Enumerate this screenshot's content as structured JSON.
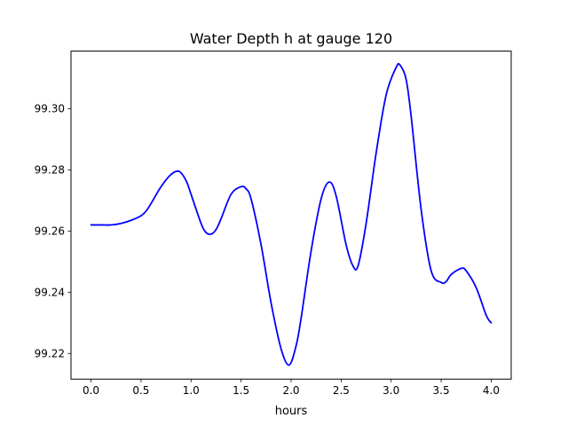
{
  "chart_data": {
    "type": "line",
    "title": "Water Depth h at gauge 120",
    "xlabel": "hours",
    "ylabel": "",
    "xlim": [
      -0.2,
      4.2
    ],
    "ylim": [
      99.2116,
      99.3188
    ],
    "xticks": [
      0.0,
      0.5,
      1.0,
      1.5,
      2.0,
      2.5,
      3.0,
      3.5,
      4.0
    ],
    "xtick_labels": [
      "0.0",
      "0.5",
      "1.0",
      "1.5",
      "2.0",
      "2.5",
      "3.0",
      "3.5",
      "4.0"
    ],
    "yticks": [
      99.22,
      99.24,
      99.26,
      99.28,
      99.3
    ],
    "ytick_labels": [
      "99.22",
      "99.24",
      "99.26",
      "99.28",
      "99.30"
    ],
    "grid": false,
    "series": [
      {
        "color": "#0000ff",
        "x": [
          0.0,
          0.1,
          0.2,
          0.3,
          0.4,
          0.5,
          0.55,
          0.6,
          0.7,
          0.8,
          0.88,
          0.95,
          1.0,
          1.1,
          1.15,
          1.2,
          1.25,
          1.3,
          1.4,
          1.5,
          1.55,
          1.6,
          1.7,
          1.8,
          1.9,
          1.98,
          2.05,
          2.1,
          2.2,
          2.3,
          2.38,
          2.45,
          2.55,
          2.62,
          2.67,
          2.75,
          2.85,
          2.95,
          3.05,
          3.09,
          3.15,
          3.2,
          3.3,
          3.4,
          3.5,
          3.55,
          3.6,
          3.7,
          3.75,
          3.85,
          3.95,
          4.0
        ],
        "y": [
          99.262,
          99.262,
          99.262,
          99.2625,
          99.2635,
          99.265,
          99.2665,
          99.269,
          99.2745,
          99.2785,
          99.2795,
          99.2765,
          99.272,
          99.2625,
          99.2595,
          99.259,
          99.2605,
          99.264,
          99.272,
          99.2745,
          99.2738,
          99.2705,
          99.2555,
          99.2365,
          99.2215,
          99.2162,
          99.2225,
          99.2315,
          99.2535,
          99.2705,
          99.276,
          99.2715,
          99.2555,
          99.2485,
          99.2487,
          99.2625,
          99.2855,
          99.3045,
          99.3135,
          99.3142,
          99.3095,
          99.2975,
          99.267,
          99.247,
          99.2432,
          99.2435,
          99.2458,
          99.2478,
          99.247,
          99.2415,
          99.2325,
          99.23
        ]
      }
    ]
  }
}
